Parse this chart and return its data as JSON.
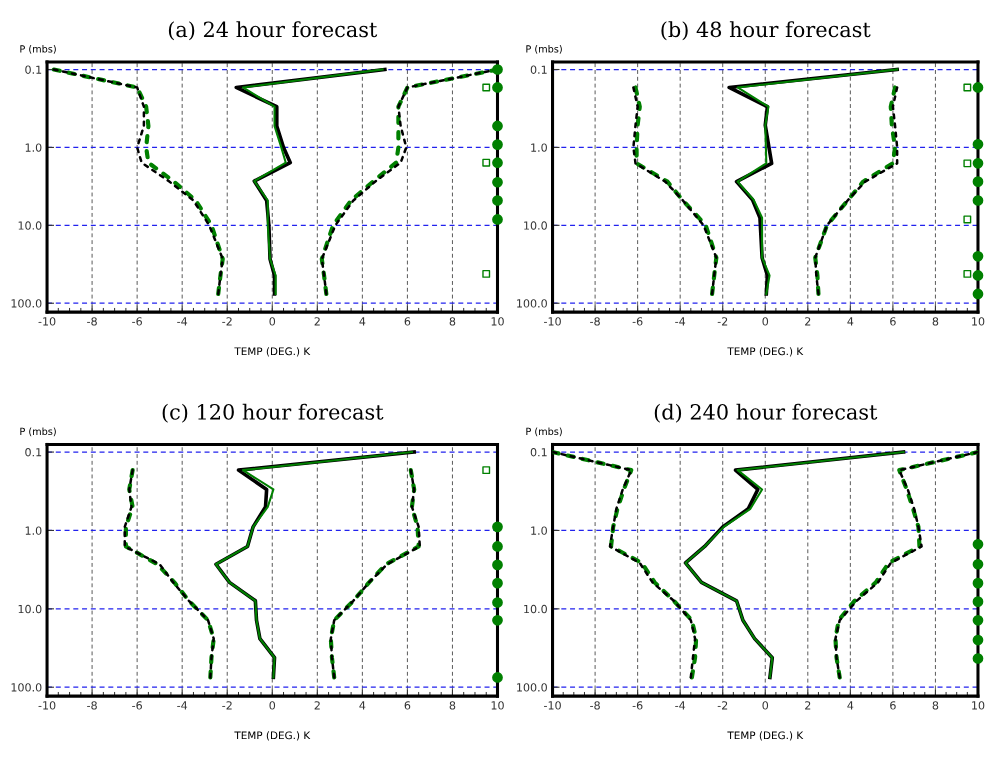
{
  "chart_data": [
    {
      "type": "line",
      "title": "(a) 24 hour forecast",
      "xlabel": "TEMP (DEG.) K",
      "ylabel": "P (mbs)",
      "xlim": [
        -10,
        10
      ],
      "xticks": [
        -10,
        -8,
        -6,
        -4,
        -2,
        0,
        2,
        4,
        6,
        8,
        10
      ],
      "ylim": [
        130,
        0.08
      ],
      "yticks": [
        {
          "value": 0.1,
          "label": "0.1"
        },
        {
          "value": 1,
          "label": "1.0"
        },
        {
          "value": 10,
          "label": "10.0"
        },
        {
          "value": 100,
          "label": "100.0"
        }
      ],
      "log": "y",
      "grid": true,
      "series": [
        {
          "type": "line",
          "color": "#000000",
          "line_style": "dashed",
          "x": [
            -9.7,
            -6.0,
            -5.7,
            -5.7,
            -6.0,
            -5.8,
            -4.6,
            -3.5,
            -2.8,
            -2.2,
            -2.3,
            -2.4
          ],
          "values": [
            0.1,
            0.17,
            0.3,
            0.53,
            1.0,
            1.57,
            2.7,
            4.8,
            10,
            27,
            44,
            76
          ]
        },
        {
          "type": "line",
          "color": "#008000",
          "line_style": "dashed",
          "x": [
            -9.7,
            -6.0,
            -5.6,
            -5.5,
            -5.6,
            -5.5,
            -4.4,
            -3.4,
            -2.7,
            -2.2,
            -2.3,
            -2.4
          ],
          "values": [
            0.1,
            0.17,
            0.3,
            0.53,
            1.0,
            1.57,
            2.7,
            4.8,
            10,
            27,
            44,
            76
          ]
        },
        {
          "type": "line",
          "color": "#000000",
          "line_style": "dashed",
          "x": [
            10,
            6.0,
            5.6,
            5.7,
            5.95,
            5.7,
            4.6,
            3.6,
            2.8,
            2.2,
            2.3,
            2.4
          ],
          "values": [
            0.1,
            0.17,
            0.3,
            0.53,
            1.0,
            1.57,
            2.7,
            4.8,
            10,
            27,
            44,
            76
          ]
        },
        {
          "type": "line",
          "color": "#008000",
          "line_style": "dashed",
          "x": [
            10,
            6.0,
            5.6,
            5.6,
            5.6,
            5.5,
            4.5,
            3.5,
            2.7,
            2.2,
            2.3,
            2.4
          ],
          "values": [
            0.1,
            0.17,
            0.3,
            0.53,
            1.0,
            1.57,
            2.7,
            4.8,
            10,
            27,
            44,
            76
          ]
        },
        {
          "type": "line",
          "color": "#000000",
          "line_style": "solid",
          "x": [
            5.0,
            -1.6,
            0.2,
            0.2,
            0.5,
            0.8,
            -0.8,
            -0.25,
            -0.15,
            -0.1,
            0.1,
            0.1
          ],
          "values": [
            0.1,
            0.17,
            0.3,
            0.53,
            1.0,
            1.57,
            2.7,
            4.8,
            10,
            27,
            44,
            76
          ]
        },
        {
          "type": "line",
          "color": "#008000",
          "line_style": "solid",
          "x": [
            4.9,
            -1.3,
            0.1,
            0.1,
            0.4,
            0.6,
            -0.8,
            -0.2,
            -0.2,
            -0.1,
            0.15,
            0.15
          ],
          "values": [
            0.1,
            0.17,
            0.3,
            0.53,
            1.0,
            1.57,
            2.7,
            4.8,
            10,
            27,
            44,
            76
          ]
        },
        {
          "type": "scatter",
          "color": "#008000",
          "marker": "circle",
          "x": [
            10,
            10,
            10,
            10,
            10,
            10,
            10,
            10
          ],
          "values": [
            0.1,
            0.17,
            0.53,
            0.92,
            1.57,
            2.8,
            4.8,
            8.4
          ]
        },
        {
          "type": "scatter",
          "color": "#008000",
          "marker": "square",
          "x": [
            9.5,
            9.5,
            9.5
          ],
          "values": [
            0.17,
            1.57,
            42
          ]
        }
      ]
    },
    {
      "type": "line",
      "title": "(b) 48 hour forecast",
      "xlabel": "TEMP (DEG.) K",
      "ylabel": "P (mbs)",
      "xlim": [
        -10,
        10
      ],
      "xticks": [
        -10,
        -8,
        -6,
        -4,
        -2,
        0,
        2,
        4,
        6,
        8,
        10
      ],
      "ylim": [
        130,
        0.08
      ],
      "yticks": [
        {
          "value": 0.1,
          "label": "0.1"
        },
        {
          "value": 1,
          "label": "1.0"
        },
        {
          "value": 10,
          "label": "10.0"
        },
        {
          "value": 100,
          "label": "100.0"
        }
      ],
      "log": "y",
      "grid": true,
      "series": [
        {
          "type": "line",
          "color": "#000000",
          "line_style": "dashed",
          "x": [
            -6.2,
            -6.0,
            -6.1,
            -6.2,
            -6.1,
            -4.7,
            -3.9,
            -2.9,
            -2.3,
            -2.4,
            -2.5
          ],
          "values": [
            0.17,
            0.3,
            0.52,
            1.0,
            1.6,
            2.75,
            4.7,
            10,
            26,
            44,
            76
          ]
        },
        {
          "type": "line",
          "color": "#008000",
          "line_style": "dashed",
          "x": [
            -6.1,
            -5.9,
            -6.0,
            -6.05,
            -6.05,
            -4.6,
            -3.9,
            -2.8,
            -2.3,
            -2.4,
            -2.5
          ],
          "values": [
            0.17,
            0.3,
            0.52,
            1.0,
            1.6,
            2.75,
            4.7,
            10,
            26,
            44,
            76
          ]
        },
        {
          "type": "line",
          "color": "#000000",
          "line_style": "dashed",
          "x": [
            6.2,
            6.0,
            6.1,
            6.2,
            6.2,
            4.7,
            3.9,
            2.9,
            2.35,
            2.4,
            2.5
          ],
          "values": [
            0.17,
            0.3,
            0.52,
            1.0,
            1.6,
            2.75,
            4.7,
            10,
            26,
            44,
            76
          ]
        },
        {
          "type": "line",
          "color": "#008000",
          "line_style": "dashed",
          "x": [
            6.1,
            5.9,
            5.95,
            6.1,
            6.0,
            4.6,
            3.9,
            2.9,
            2.35,
            2.45,
            2.5
          ],
          "values": [
            0.17,
            0.3,
            0.52,
            1.0,
            1.6,
            2.75,
            4.7,
            10,
            26,
            44,
            76
          ]
        },
        {
          "type": "line",
          "color": "#000000",
          "line_style": "solid",
          "x": [
            6.2,
            -1.7,
            0.1,
            0.0,
            0.3,
            -1.35,
            -0.6,
            -0.25,
            -0.15,
            0.1,
            0.05
          ],
          "values": [
            0.1,
            0.17,
            0.3,
            0.52,
            1.6,
            2.75,
            4.7,
            8.0,
            26,
            44,
            76
          ]
        },
        {
          "type": "line",
          "color": "#008000",
          "line_style": "solid",
          "x": [
            6.2,
            -1.3,
            0.15,
            0.0,
            0.05,
            -1.3,
            -0.55,
            -0.15,
            -0.15,
            0.2,
            0.05
          ],
          "values": [
            0.1,
            0.17,
            0.3,
            0.52,
            1.6,
            2.75,
            4.7,
            8.0,
            26,
            44,
            76
          ]
        },
        {
          "type": "scatter",
          "color": "#008000",
          "marker": "circle",
          "x": [
            10,
            10,
            10,
            10,
            10,
            10,
            10,
            10
          ],
          "values": [
            0.17,
            0.91,
            1.6,
            2.75,
            4.8,
            25,
            44,
            76
          ]
        },
        {
          "type": "scatter",
          "color": "#008000",
          "marker": "square",
          "x": [
            9.5,
            9.5,
            9.5,
            9.5
          ],
          "values": [
            0.17,
            1.6,
            8.4,
            42
          ]
        }
      ]
    },
    {
      "type": "line",
      "title": "(c) 120 hour forecast",
      "xlabel": "TEMP (DEG.) K",
      "ylabel": "P (mbs)",
      "xlim": [
        -10,
        10
      ],
      "xticks": [
        -10,
        -8,
        -6,
        -4,
        -2,
        0,
        2,
        4,
        6,
        8,
        10
      ],
      "ylim": [
        130,
        0.08
      ],
      "yticks": [
        {
          "value": 0.1,
          "label": "0.1"
        },
        {
          "value": 1,
          "label": "1.0"
        },
        {
          "value": 10,
          "label": "10.0"
        },
        {
          "value": 100,
          "label": "100.0"
        }
      ],
      "log": "y",
      "grid": true,
      "series": [
        {
          "type": "line",
          "color": "#000000",
          "line_style": "dashed",
          "x": [
            -6.2,
            -6.35,
            -6.25,
            -6.55,
            -6.55,
            -5.0,
            -4.4,
            -3.7,
            -2.85,
            -2.6,
            -2.7,
            -2.75
          ],
          "values": [
            0.17,
            0.3,
            0.5,
            0.9,
            1.6,
            2.7,
            4.6,
            7.9,
            14,
            24,
            42,
            75
          ]
        },
        {
          "type": "line",
          "color": "#008000",
          "line_style": "dashed",
          "x": [
            -6.2,
            -6.35,
            -6.2,
            -6.5,
            -6.5,
            -5.1,
            -4.35,
            -3.7,
            -2.85,
            -2.6,
            -2.7,
            -2.75
          ],
          "values": [
            0.17,
            0.3,
            0.5,
            0.9,
            1.6,
            2.7,
            4.6,
            7.9,
            14,
            24,
            42,
            75
          ]
        },
        {
          "type": "line",
          "color": "#000000",
          "line_style": "dashed",
          "x": [
            6.15,
            6.3,
            6.2,
            6.5,
            6.55,
            5.1,
            4.3,
            3.6,
            2.75,
            2.6,
            2.65,
            2.75
          ],
          "values": [
            0.17,
            0.3,
            0.5,
            0.9,
            1.6,
            2.7,
            4.6,
            7.9,
            14,
            24,
            42,
            75
          ]
        },
        {
          "type": "line",
          "color": "#008000",
          "line_style": "dashed",
          "x": [
            6.15,
            6.3,
            6.2,
            6.45,
            6.5,
            5.05,
            4.3,
            3.6,
            2.75,
            2.6,
            2.65,
            2.75
          ],
          "values": [
            0.17,
            0.3,
            0.5,
            0.9,
            1.6,
            2.7,
            4.6,
            7.9,
            14,
            24,
            42,
            75
          ]
        },
        {
          "type": "line",
          "color": "#000000",
          "line_style": "solid",
          "x": [
            6.3,
            -1.5,
            -0.25,
            -0.3,
            -0.85,
            -1.1,
            -2.5,
            -1.9,
            -0.75,
            -0.7,
            -0.55,
            0.1,
            0.05
          ],
          "values": [
            0.1,
            0.17,
            0.3,
            0.5,
            0.9,
            1.6,
            2.7,
            4.6,
            7.9,
            14,
            24,
            42,
            75
          ]
        },
        {
          "type": "line",
          "color": "#008000",
          "line_style": "solid",
          "x": [
            6.2,
            -1.3,
            0.05,
            -0.2,
            -0.85,
            -1.1,
            -2.5,
            -1.9,
            -0.75,
            -0.7,
            -0.55,
            0.1,
            0.05
          ],
          "values": [
            0.1,
            0.17,
            0.3,
            0.5,
            0.9,
            1.6,
            2.7,
            4.6,
            7.9,
            14,
            24,
            42,
            75
          ]
        },
        {
          "type": "scatter",
          "color": "#008000",
          "marker": "circle",
          "x": [
            10,
            10,
            10,
            10,
            10,
            10,
            10
          ],
          "values": [
            0.9,
            1.6,
            2.75,
            4.7,
            8.3,
            14,
            75
          ]
        },
        {
          "type": "scatter",
          "color": "#008000",
          "marker": "square",
          "x": [
            9.5
          ],
          "values": [
            0.17
          ]
        }
      ]
    },
    {
      "type": "line",
      "title": "(d) 240 hour forecast",
      "xlabel": "TEMP (DEG.) K",
      "ylabel": "P (mbs)",
      "xlim": [
        -10,
        10
      ],
      "xticks": [
        -10,
        -8,
        -6,
        -4,
        -2,
        0,
        2,
        4,
        6,
        8,
        10
      ],
      "ylim": [
        130,
        0.08
      ],
      "yticks": [
        {
          "value": 0.1,
          "label": "0.1"
        },
        {
          "value": 1,
          "label": "1.0"
        },
        {
          "value": 10,
          "label": "10.0"
        },
        {
          "value": 100,
          "label": "100.0"
        }
      ],
      "log": "y",
      "grid": true,
      "series": [
        {
          "type": "line",
          "color": "#000000",
          "line_style": "dashed",
          "x": [
            -10,
            -6.3,
            -6.7,
            -7.0,
            -7.15,
            -7.3,
            -5.9,
            -5.3,
            -4.3,
            -3.5,
            -3.3,
            -3.4,
            -3.5
          ],
          "values": [
            0.1,
            0.17,
            0.3,
            0.53,
            0.9,
            1.6,
            2.6,
            4.6,
            7.9,
            14,
            24,
            42,
            75
          ]
        },
        {
          "type": "line",
          "color": "#008000",
          "line_style": "dashed",
          "x": [
            -10,
            -6.3,
            -6.65,
            -6.95,
            -7.15,
            -7.25,
            -5.8,
            -5.2,
            -4.3,
            -3.45,
            -3.25,
            -3.3,
            -3.45
          ],
          "values": [
            0.1,
            0.17,
            0.3,
            0.53,
            0.9,
            1.6,
            2.6,
            4.6,
            7.9,
            14,
            24,
            42,
            75
          ]
        },
        {
          "type": "line",
          "color": "#000000",
          "line_style": "dashed",
          "x": [
            10,
            6.3,
            6.7,
            7.0,
            7.2,
            7.35,
            5.9,
            5.3,
            4.3,
            3.5,
            3.3,
            3.35,
            3.5
          ],
          "values": [
            0.1,
            0.17,
            0.3,
            0.53,
            0.9,
            1.6,
            2.6,
            4.6,
            7.9,
            14,
            24,
            42,
            75
          ]
        },
        {
          "type": "line",
          "color": "#008000",
          "line_style": "dashed",
          "x": [
            10,
            6.3,
            6.65,
            6.95,
            7.2,
            7.25,
            5.8,
            5.2,
            4.2,
            3.45,
            3.3,
            3.35,
            3.5
          ],
          "values": [
            0.1,
            0.17,
            0.3,
            0.53,
            0.9,
            1.6,
            2.6,
            4.6,
            7.9,
            14,
            24,
            42,
            75
          ]
        },
        {
          "type": "line",
          "color": "#000000",
          "line_style": "solid",
          "x": [
            6.5,
            -1.4,
            -0.35,
            -0.8,
            -2.0,
            -2.85,
            -3.75,
            -3.0,
            -1.35,
            -1.05,
            -0.5,
            0.33,
            0.22
          ],
          "values": [
            0.1,
            0.17,
            0.3,
            0.53,
            0.9,
            1.6,
            2.6,
            4.6,
            7.9,
            14,
            24,
            42,
            75
          ]
        },
        {
          "type": "line",
          "color": "#008000",
          "line_style": "solid",
          "x": [
            6.5,
            -1.3,
            -0.15,
            -0.7,
            -1.95,
            -2.85,
            -3.75,
            -3.0,
            -1.35,
            -1.05,
            -0.5,
            0.33,
            0.22
          ],
          "values": [
            0.1,
            0.17,
            0.3,
            0.53,
            0.9,
            1.6,
            2.6,
            4.6,
            7.9,
            14,
            24,
            42,
            75
          ]
        },
        {
          "type": "scatter",
          "color": "#008000",
          "marker": "circle",
          "x": [
            10,
            10,
            10,
            10,
            10,
            10,
            10
          ],
          "values": [
            1.5,
            2.7,
            4.7,
            8.1,
            14,
            25,
            43
          ]
        }
      ]
    }
  ]
}
